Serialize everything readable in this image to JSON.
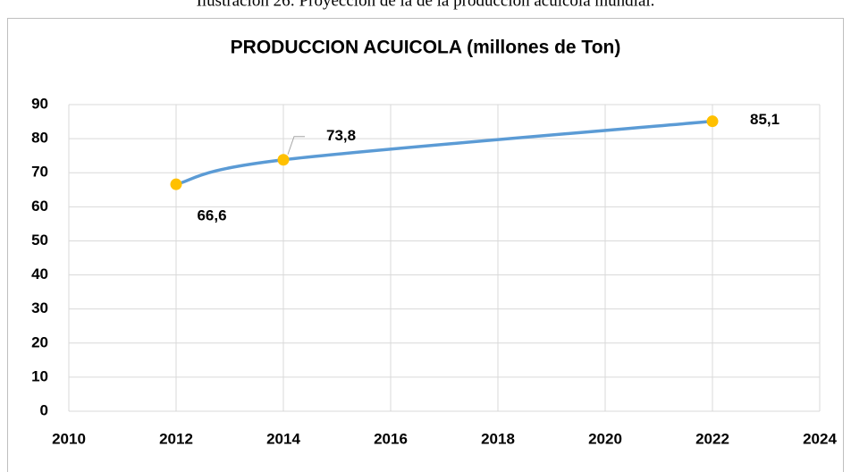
{
  "caption": "Ilustración 26: Proyección de la de la producción acuícola mundial.",
  "chart_data": {
    "type": "line",
    "title": "PRODUCCION ACUICOLA (millones de Ton)",
    "x": [
      2012,
      2014,
      2022
    ],
    "series": [
      {
        "name": "PRODUCCION ACUICOLA",
        "color": "#5b9bd5",
        "marker_color": "#ffc000",
        "values": [
          66.6,
          73.8,
          85.1
        ],
        "value_labels": [
          "66,6",
          "73,8",
          "85,1"
        ]
      }
    ],
    "xlim": [
      2010,
      2024
    ],
    "xticks": [
      2010,
      2012,
      2014,
      2016,
      2018,
      2020,
      2022,
      2024
    ],
    "ylim": [
      0,
      90
    ],
    "yticks": [
      0,
      10,
      20,
      30,
      40,
      50,
      60,
      70,
      80,
      90
    ],
    "grid": true,
    "smooth": true
  }
}
